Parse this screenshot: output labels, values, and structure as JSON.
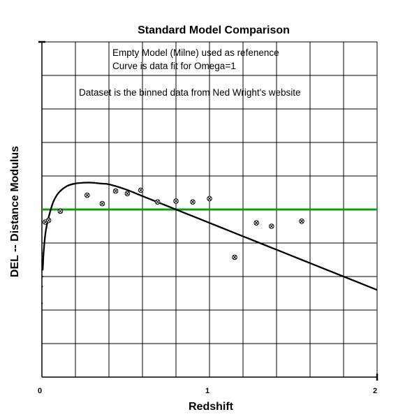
{
  "chart_data": {
    "type": "scatter",
    "title": "Standard Model Comparison",
    "xlabel": "Redshift",
    "ylabel": "DEL -- Distance Modulus",
    "xlim": [
      0,
      2
    ],
    "ylim": [
      -1,
      1
    ],
    "x_ticks": [
      0,
      1,
      2
    ],
    "x_tick_labels": [
      "0",
      "1",
      "2"
    ],
    "grid": true,
    "annotations": [
      "Empty Model (Milne) used as refenence",
      "Curve is data fit for Omega=1",
      "Dataset is the binned data from Ned Wright's website"
    ],
    "reference_line": {
      "y": 0,
      "color": "#10a010"
    },
    "series": [
      {
        "type": "line",
        "color": "#000000",
        "x": [
          0.005,
          0.01,
          0.02,
          0.03,
          0.05,
          0.07,
          0.1,
          0.15,
          0.2,
          0.25,
          0.3,
          0.35,
          0.4,
          0.5,
          0.6,
          0.7,
          0.8,
          0.9,
          1.0,
          1.1,
          1.2,
          1.3,
          1.4,
          1.5,
          1.6,
          1.7,
          1.8,
          1.9,
          2.0
        ],
        "y": [
          -0.36,
          -0.26,
          -0.15,
          -0.09,
          -0.01,
          0.05,
          0.1,
          0.14,
          0.155,
          0.16,
          0.16,
          0.155,
          0.15,
          0.12,
          0.08,
          0.04,
          0.0,
          -0.04,
          -0.08,
          -0.12,
          -0.16,
          -0.2,
          -0.24,
          -0.28,
          -0.32,
          -0.36,
          -0.4,
          -0.44,
          -0.48
        ]
      },
      {
        "type": "scatter",
        "color": "#000000",
        "x": [
          0.02,
          0.04,
          0.11,
          0.27,
          0.36,
          0.44,
          0.51,
          0.59,
          0.69,
          0.8,
          0.9,
          1.0,
          1.15,
          1.28,
          1.37,
          1.55
        ],
        "y": [
          -0.075,
          -0.065,
          -0.01,
          0.085,
          0.035,
          0.11,
          0.095,
          0.115,
          0.045,
          0.05,
          0.045,
          0.065,
          -0.285,
          -0.08,
          -0.1,
          -0.07
        ]
      },
      {
        "type": "dots",
        "color": "#000000",
        "x": [
          0.001,
          0.002,
          0.003,
          0.004,
          0.005,
          0.006,
          0.007,
          0.008
        ],
        "y": [
          -0.56,
          -0.46,
          -0.4,
          -0.36,
          -0.33,
          -0.3,
          -0.28,
          -0.26
        ]
      }
    ]
  }
}
